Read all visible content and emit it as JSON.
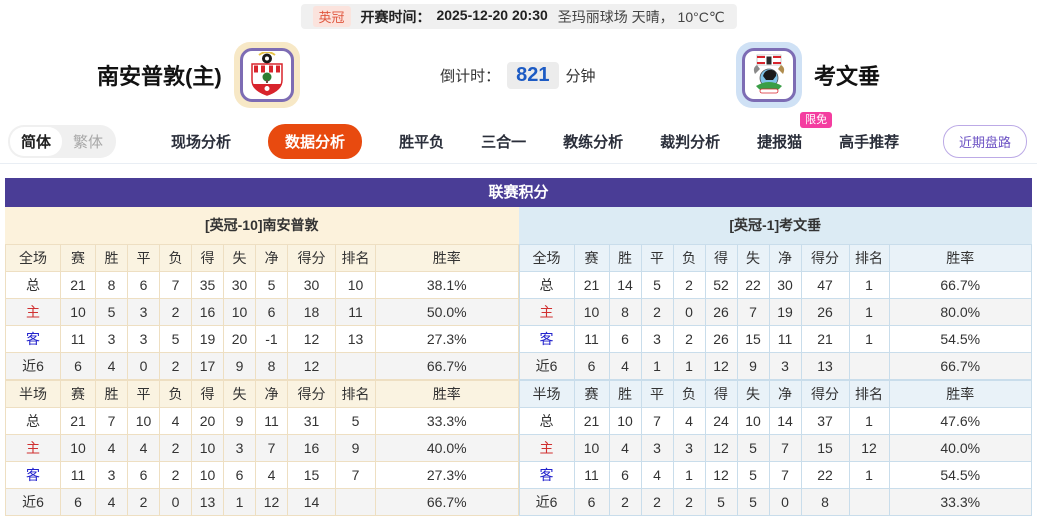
{
  "match_bar": {
    "league_badge": "英冠",
    "kickoff_label": "开赛时间：",
    "kickoff_time": "2025-12-20 20:30",
    "venue_weather": "圣玛丽球场 天晴， 10°C℃"
  },
  "teams": {
    "home": {
      "name": "南安普敦(主)"
    },
    "away": {
      "name": "考文垂"
    }
  },
  "countdown": {
    "label": "倒计时：",
    "value": "821",
    "unit": "分钟"
  },
  "nav": {
    "lang_simplified": "简体",
    "lang_traditional": "繁体",
    "tabs": [
      {
        "label": "现场分析",
        "active": false
      },
      {
        "label": "数据分析",
        "active": true
      },
      {
        "label": "胜平负",
        "active": false
      },
      {
        "label": "三合一",
        "active": false
      },
      {
        "label": "教练分析",
        "active": false
      },
      {
        "label": "裁判分析",
        "active": false
      },
      {
        "label": "捷报猫",
        "active": false,
        "badge": "限免"
      },
      {
        "label": "高手推荐",
        "active": false
      }
    ],
    "recent_button": "近期盘路"
  },
  "panel": {
    "title": "联赛积分",
    "home_section": "[英冠-10]南安普敦",
    "away_section": "[英冠-1]考文垂"
  },
  "stats": {
    "columns": [
      "赛",
      "胜",
      "平",
      "负",
      "得",
      "失",
      "净",
      "得分",
      "排名",
      "胜率"
    ],
    "home": {
      "full": {
        "title": "全场",
        "rows": [
          {
            "label": "总",
            "type": "total",
            "values": [
              "21",
              "8",
              "6",
              "7",
              "35",
              "30",
              "5",
              "30",
              "10",
              "38.1%"
            ]
          },
          {
            "label": "主",
            "type": "home",
            "values": [
              "10",
              "5",
              "3",
              "2",
              "16",
              "10",
              "6",
              "18",
              "11",
              "50.0%"
            ]
          },
          {
            "label": "客",
            "type": "away",
            "values": [
              "11",
              "3",
              "3",
              "5",
              "19",
              "20",
              "-1",
              "12",
              "13",
              "27.3%"
            ]
          },
          {
            "label": "近6",
            "type": "recent",
            "values": [
              "6",
              "4",
              "0",
              "2",
              "17",
              "9",
              "8",
              "12",
              "",
              "66.7%"
            ]
          }
        ]
      },
      "half": {
        "title": "半场",
        "rows": [
          {
            "label": "总",
            "type": "total",
            "values": [
              "21",
              "7",
              "10",
              "4",
              "20",
              "9",
              "11",
              "31",
              "5",
              "33.3%"
            ]
          },
          {
            "label": "主",
            "type": "home",
            "values": [
              "10",
              "4",
              "4",
              "2",
              "10",
              "3",
              "7",
              "16",
              "9",
              "40.0%"
            ]
          },
          {
            "label": "客",
            "type": "away",
            "values": [
              "11",
              "3",
              "6",
              "2",
              "10",
              "6",
              "4",
              "15",
              "7",
              "27.3%"
            ]
          },
          {
            "label": "近6",
            "type": "recent",
            "values": [
              "6",
              "4",
              "2",
              "0",
              "13",
              "1",
              "12",
              "14",
              "",
              "66.7%"
            ]
          }
        ]
      }
    },
    "away": {
      "full": {
        "title": "全场",
        "rows": [
          {
            "label": "总",
            "type": "total",
            "values": [
              "21",
              "14",
              "5",
              "2",
              "52",
              "22",
              "30",
              "47",
              "1",
              "66.7%"
            ]
          },
          {
            "label": "主",
            "type": "home",
            "values": [
              "10",
              "8",
              "2",
              "0",
              "26",
              "7",
              "19",
              "26",
              "1",
              "80.0%"
            ]
          },
          {
            "label": "客",
            "type": "away",
            "values": [
              "11",
              "6",
              "3",
              "2",
              "26",
              "15",
              "11",
              "21",
              "1",
              "54.5%"
            ]
          },
          {
            "label": "近6",
            "type": "recent",
            "values": [
              "6",
              "4",
              "1",
              "1",
              "12",
              "9",
              "3",
              "13",
              "",
              "66.7%"
            ]
          }
        ]
      },
      "half": {
        "title": "半场",
        "rows": [
          {
            "label": "总",
            "type": "total",
            "values": [
              "21",
              "10",
              "7",
              "4",
              "24",
              "10",
              "14",
              "37",
              "1",
              "47.6%"
            ]
          },
          {
            "label": "主",
            "type": "home",
            "values": [
              "10",
              "4",
              "3",
              "3",
              "12",
              "5",
              "7",
              "15",
              "12",
              "40.0%"
            ]
          },
          {
            "label": "客",
            "type": "away",
            "values": [
              "11",
              "6",
              "4",
              "1",
              "12",
              "5",
              "7",
              "22",
              "1",
              "54.5%"
            ]
          },
          {
            "label": "近6",
            "type": "recent",
            "values": [
              "6",
              "2",
              "2",
              "2",
              "5",
              "5",
              "0",
              "8",
              "",
              "33.3%"
            ]
          }
        ]
      }
    }
  },
  "colors": {
    "accent_purple": "#4a3d96",
    "active_tab_orange": "#e84a0f",
    "free_badge_pink": "#f43da0",
    "home_section_bg": "#fcf2dc",
    "away_section_bg": "#dcebf4",
    "home_row_red": "#d03030",
    "away_row_blue": "#2222cc",
    "countdown_blue": "#1d5bc4"
  }
}
